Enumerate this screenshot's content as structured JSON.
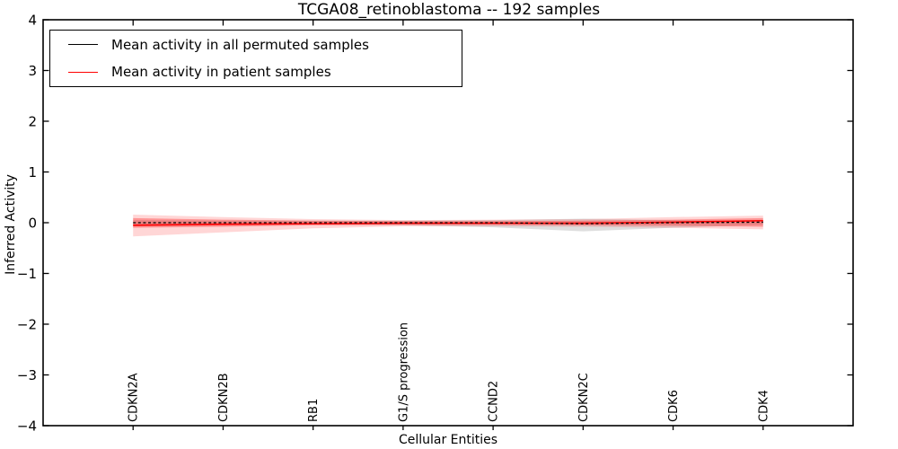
{
  "figure": {
    "title": "TCGA08_retinoblastoma -- 192 samples",
    "xlabel": "Cellular Entities",
    "ylabel": "Inferred Activity"
  },
  "chart_data": {
    "type": "line",
    "title": "TCGA08_retinoblastoma -- 192 samples",
    "xlabel": "Cellular Entities",
    "ylabel": "Inferred Activity",
    "ylim": [
      -4,
      4
    ],
    "ytick_values": [
      4,
      3,
      2,
      1,
      0,
      -1,
      -2,
      -3,
      -4
    ],
    "ytick_labels": [
      "4",
      "3",
      "2",
      "1",
      "0",
      "−1",
      "−2",
      "−3",
      "−4"
    ],
    "grid": false,
    "legend_position": "upper-left",
    "categories": [
      "CDKN2A",
      "CDKN2B",
      "RB1",
      "G1/S progression",
      "CCND2",
      "CDKN2C",
      "CDK6",
      "CDK4"
    ],
    "series": [
      {
        "name": "Mean activity in all permuted samples",
        "color": "#000000",
        "line_style": "dashed",
        "values": [
          0.0,
          0.0,
          0.0,
          0.0,
          0.0,
          -0.02,
          0.0,
          0.01
        ],
        "bands": [
          {
            "upper": [
              0.05,
              0.04,
              0.04,
              0.04,
              0.05,
              0.08,
              0.05,
              0.04
            ],
            "lower": [
              -0.07,
              -0.05,
              -0.04,
              -0.05,
              -0.09,
              -0.17,
              -0.1,
              -0.04
            ],
            "color": "#000000",
            "opacity": 0.13
          }
        ]
      },
      {
        "name": "Mean activity in patient samples",
        "color": "#ff0000",
        "line_style": "solid",
        "values": [
          -0.05,
          -0.03,
          -0.02,
          -0.01,
          -0.01,
          -0.01,
          0.01,
          0.04
        ],
        "bands": [
          {
            "upper": [
              0.16,
              0.11,
              0.07,
              0.05,
              0.06,
              0.07,
              0.11,
              0.14
            ],
            "lower": [
              -0.27,
              -0.19,
              -0.11,
              -0.07,
              -0.07,
              -0.08,
              -0.1,
              -0.13
            ],
            "color": "#ff0000",
            "opacity": 0.16
          },
          {
            "upper": [
              0.09,
              0.06,
              0.04,
              0.03,
              0.03,
              0.04,
              0.06,
              0.09
            ],
            "lower": [
              -0.1,
              -0.08,
              -0.05,
              -0.04,
              -0.04,
              -0.05,
              -0.06,
              -0.08
            ],
            "color": "#ff0000",
            "opacity": 0.3
          }
        ]
      }
    ]
  }
}
